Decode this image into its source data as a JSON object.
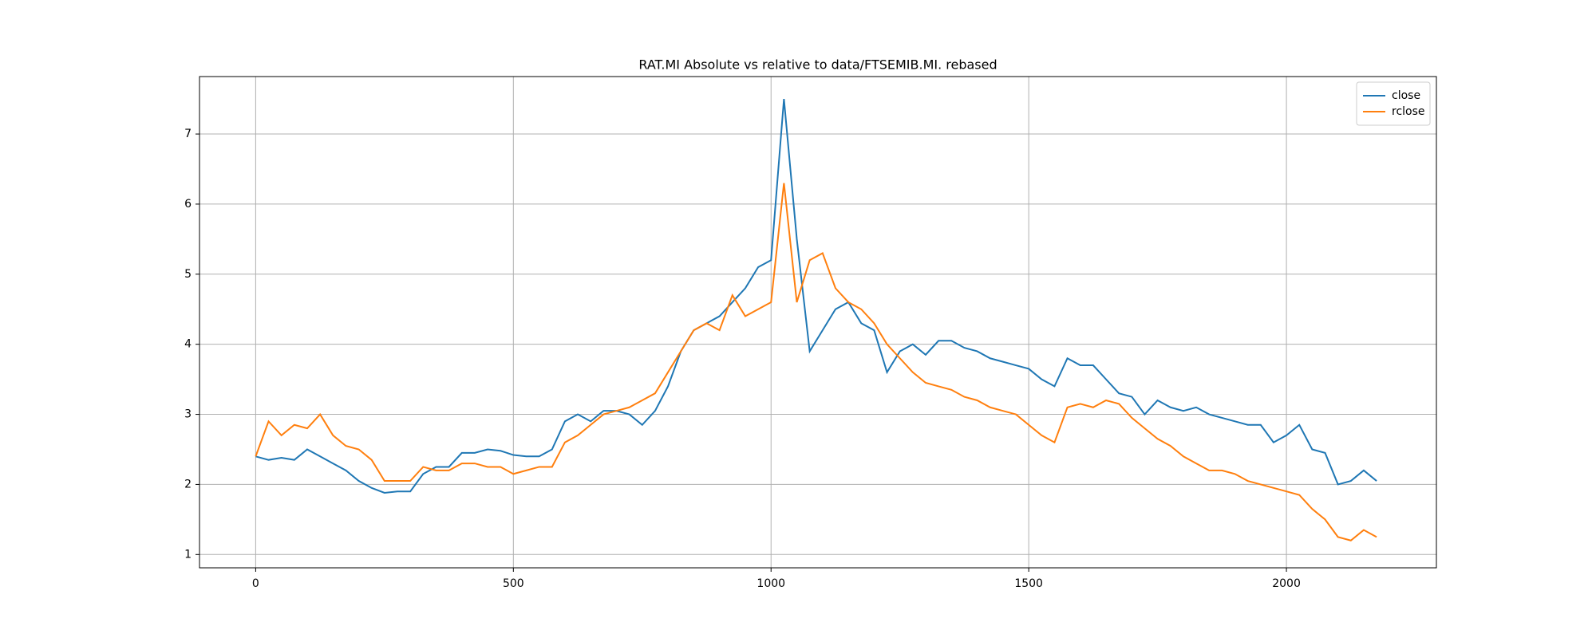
{
  "chart_data": {
    "type": "line",
    "title": "RAT.MI Absolute vs relative to data/FTSEMIB.MI. rebased",
    "x": [
      0,
      25,
      50,
      75,
      100,
      125,
      150,
      175,
      200,
      225,
      250,
      275,
      300,
      325,
      350,
      375,
      400,
      425,
      450,
      475,
      500,
      525,
      550,
      575,
      600,
      625,
      650,
      675,
      700,
      725,
      750,
      775,
      800,
      825,
      850,
      875,
      900,
      925,
      950,
      975,
      1000,
      1025,
      1050,
      1075,
      1100,
      1125,
      1150,
      1175,
      1200,
      1225,
      1250,
      1275,
      1300,
      1325,
      1350,
      1375,
      1400,
      1425,
      1450,
      1475,
      1500,
      1525,
      1550,
      1575,
      1600,
      1625,
      1650,
      1675,
      1700,
      1725,
      1750,
      1775,
      1800,
      1825,
      1850,
      1875,
      1900,
      1925,
      1950,
      1975,
      2000,
      2025,
      2050,
      2075,
      2100,
      2125,
      2150,
      2175
    ],
    "series": [
      {
        "name": "close",
        "color": "#1f77b4",
        "values": [
          2.4,
          2.35,
          2.38,
          2.35,
          2.5,
          2.4,
          2.3,
          2.2,
          2.05,
          1.95,
          1.88,
          1.9,
          1.9,
          2.15,
          2.25,
          2.25,
          2.45,
          2.45,
          2.5,
          2.48,
          2.42,
          2.4,
          2.4,
          2.5,
          2.9,
          3.0,
          2.9,
          3.05,
          3.05,
          3.0,
          2.85,
          3.05,
          3.4,
          3.9,
          4.2,
          4.3,
          4.4,
          4.6,
          4.8,
          5.1,
          5.2,
          7.5,
          5.5,
          3.9,
          4.2,
          4.5,
          4.6,
          4.3,
          4.2,
          3.6,
          3.9,
          4.0,
          3.85,
          4.05,
          4.05,
          3.95,
          3.9,
          3.8,
          3.75,
          3.7,
          3.65,
          3.5,
          3.4,
          3.8,
          3.7,
          3.7,
          3.5,
          3.3,
          3.25,
          3.0,
          3.2,
          3.1,
          3.05,
          3.1,
          3.0,
          2.95,
          2.9,
          2.85,
          2.85,
          2.6,
          2.7,
          2.85,
          2.5,
          2.45,
          2.0,
          2.05,
          2.2,
          2.05
        ]
      },
      {
        "name": "rclose",
        "color": "#ff7f0e",
        "values": [
          2.4,
          2.9,
          2.7,
          2.85,
          2.8,
          3.0,
          2.7,
          2.55,
          2.5,
          2.35,
          2.05,
          2.05,
          2.05,
          2.25,
          2.2,
          2.2,
          2.3,
          2.3,
          2.25,
          2.25,
          2.15,
          2.2,
          2.25,
          2.25,
          2.6,
          2.7,
          2.85,
          3.0,
          3.05,
          3.1,
          3.2,
          3.3,
          3.6,
          3.9,
          4.2,
          4.3,
          4.2,
          4.7,
          4.4,
          4.5,
          4.6,
          6.3,
          4.6,
          5.2,
          5.3,
          4.8,
          4.6,
          4.5,
          4.3,
          4.0,
          3.8,
          3.6,
          3.45,
          3.4,
          3.35,
          3.25,
          3.2,
          3.1,
          3.05,
          3.0,
          2.85,
          2.7,
          2.6,
          3.1,
          3.15,
          3.1,
          3.2,
          3.15,
          2.95,
          2.8,
          2.65,
          2.55,
          2.4,
          2.3,
          2.2,
          2.2,
          2.15,
          2.05,
          2.0,
          1.95,
          1.9,
          1.85,
          1.65,
          1.5,
          1.25,
          1.2,
          1.35,
          1.25
        ]
      }
    ],
    "xlim": [
      -109,
      2291
    ],
    "ylim": [
      0.81,
      7.82
    ],
    "xticks": [
      0,
      500,
      1000,
      1500,
      2000
    ],
    "yticks": [
      1,
      2,
      3,
      4,
      5,
      6,
      7
    ],
    "grid": true,
    "legend": "upper right"
  }
}
